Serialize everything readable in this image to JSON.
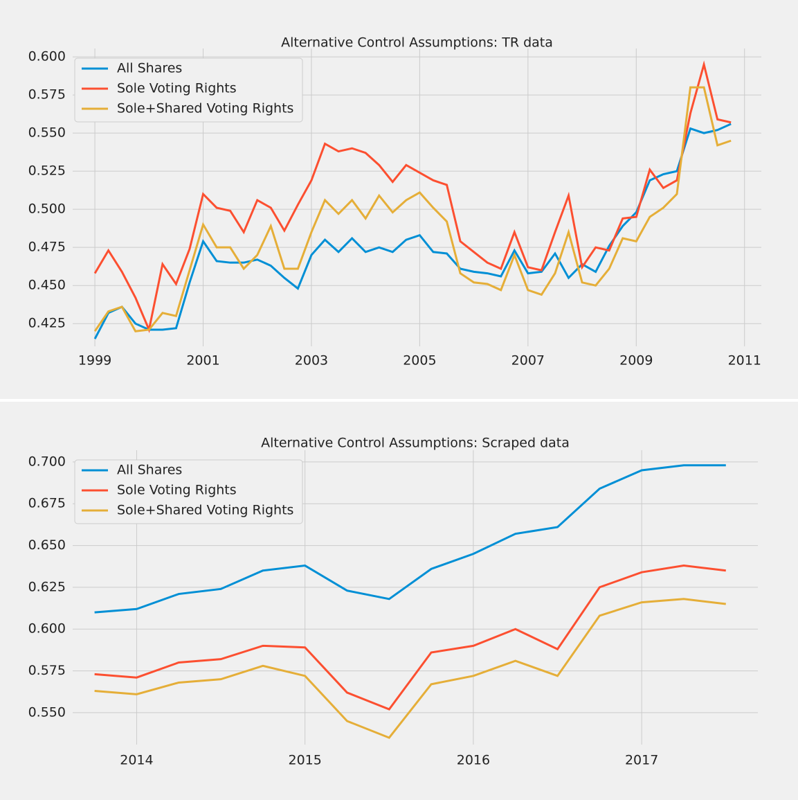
{
  "chart_data": [
    {
      "type": "line",
      "title": "Alternative Control Assumptions: TR data",
      "x": [
        1999,
        1999.25,
        1999.5,
        1999.75,
        2000,
        2000.25,
        2000.5,
        2000.75,
        2001,
        2001.25,
        2001.5,
        2001.75,
        2002,
        2002.25,
        2002.5,
        2002.75,
        2003,
        2003.25,
        2003.5,
        2003.75,
        2004,
        2004.25,
        2004.5,
        2004.75,
        2005,
        2005.25,
        2005.5,
        2005.75,
        2006,
        2006.25,
        2006.5,
        2006.75,
        2007,
        2007.25,
        2007.5,
        2007.75,
        2008,
        2008.25,
        2008.5,
        2008.75,
        2009,
        2009.25,
        2009.5,
        2009.75,
        2010,
        2010.25,
        2010.5,
        2010.75
      ],
      "series": [
        {
          "name": "All Shares",
          "color": "#008fd5",
          "values": [
            0.415,
            0.432,
            0.436,
            0.425,
            0.421,
            0.421,
            0.422,
            0.452,
            0.479,
            0.466,
            0.465,
            0.465,
            0.467,
            0.463,
            0.455,
            0.448,
            0.47,
            0.48,
            0.472,
            0.481,
            0.472,
            0.475,
            0.472,
            0.48,
            0.483,
            0.472,
            0.471,
            0.461,
            0.459,
            0.458,
            0.456,
            0.473,
            0.458,
            0.459,
            0.471,
            0.455,
            0.464,
            0.459,
            0.476,
            0.489,
            0.498,
            0.519,
            0.523,
            0.525,
            0.553,
            0.55,
            0.552,
            0.556
          ]
        },
        {
          "name": "Sole Voting Rights",
          "color": "#fc4f30",
          "values": [
            0.458,
            0.473,
            0.459,
            0.442,
            0.421,
            0.464,
            0.451,
            0.474,
            0.51,
            0.501,
            0.499,
            0.485,
            0.506,
            0.501,
            0.486,
            0.503,
            0.519,
            0.543,
            0.538,
            0.54,
            0.537,
            0.529,
            0.518,
            0.529,
            0.524,
            0.519,
            0.516,
            0.479,
            0.472,
            0.465,
            0.461,
            0.485,
            0.462,
            0.46,
            0.485,
            0.509,
            0.462,
            0.475,
            0.473,
            0.494,
            0.495,
            0.526,
            0.514,
            0.519,
            0.563,
            0.595,
            0.559,
            0.557
          ]
        },
        {
          "name": "Sole+Shared Voting Rights",
          "color": "#e5ae38",
          "values": [
            0.42,
            0.433,
            0.436,
            0.42,
            0.421,
            0.432,
            0.43,
            0.46,
            0.49,
            0.475,
            0.475,
            0.461,
            0.47,
            0.489,
            0.461,
            0.461,
            0.485,
            0.506,
            0.497,
            0.506,
            0.494,
            0.509,
            0.498,
            0.506,
            0.511,
            0.501,
            0.492,
            0.458,
            0.452,
            0.451,
            0.447,
            0.47,
            0.447,
            0.444,
            0.458,
            0.485,
            0.452,
            0.45,
            0.461,
            0.481,
            0.479,
            0.495,
            0.501,
            0.51,
            0.58,
            0.58,
            0.542,
            0.545
          ]
        }
      ],
      "xlim": [
        1998.59,
        2011.31
      ],
      "xticks": [
        1999,
        2001,
        2003,
        2005,
        2007,
        2009,
        2011
      ],
      "ylim": [
        0.4101,
        0.6055
      ],
      "yticks": [
        0.425,
        {
          "value": 0.45,
          "label": "0.450"
        },
        0.475,
        {
          "value": 0.5,
          "label": "0.500"
        },
        0.525,
        {
          "value": 0.55,
          "label": "0.550"
        },
        0.575,
        {
          "value": 0.6,
          "label": "0.600"
        }
      ],
      "grid": true,
      "legend": "upper left"
    },
    {
      "type": "line",
      "title": "Alternative Control Assumptions: Scraped data",
      "x": [
        2013.75,
        2014,
        2014.25,
        2014.5,
        2014.75,
        2015,
        2015.25,
        2015.5,
        2015.75,
        2016,
        2016.25,
        2016.5,
        2016.75,
        2017,
        2017.25,
        2017.5
      ],
      "series": [
        {
          "name": "All Shares",
          "color": "#008fd5",
          "values": [
            0.61,
            0.612,
            0.621,
            0.624,
            0.635,
            0.638,
            0.623,
            0.618,
            0.636,
            0.645,
            0.657,
            0.661,
            0.684,
            0.695,
            0.698,
            0.698
          ]
        },
        {
          "name": "Sole Voting Rights",
          "color": "#fc4f30",
          "values": [
            0.573,
            0.571,
            0.58,
            0.582,
            0.59,
            0.589,
            0.562,
            0.552,
            0.586,
            0.59,
            0.6,
            0.588,
            0.625,
            0.634,
            0.638,
            0.635
          ]
        },
        {
          "name": "Sole+Shared Voting Rights",
          "color": "#e5ae38",
          "values": [
            0.563,
            0.561,
            0.568,
            0.57,
            0.578,
            0.572,
            0.545,
            0.535,
            0.567,
            0.572,
            0.581,
            0.572,
            0.608,
            0.616,
            0.618,
            0.615
          ]
        }
      ],
      "xlim": [
        2013.62,
        2017.69
      ],
      "xticks": [
        2014,
        2015,
        2016,
        2017
      ],
      "ylim": [
        0.5309,
        0.707
      ],
      "yticks": [
        {
          "value": 0.55,
          "label": "0.550"
        },
        0.575,
        {
          "value": 0.6,
          "label": "0.600"
        },
        0.625,
        {
          "value": 0.65,
          "label": "0.650"
        },
        0.675,
        {
          "value": 0.7,
          "label": "0.700"
        }
      ],
      "grid": true,
      "legend": "upper left"
    }
  ]
}
